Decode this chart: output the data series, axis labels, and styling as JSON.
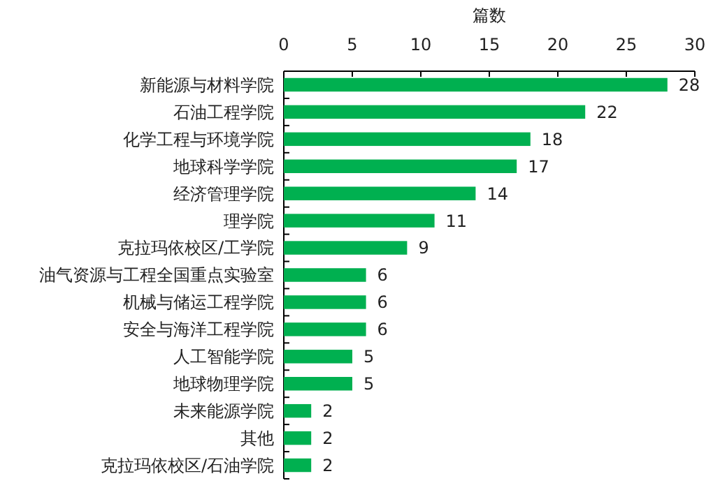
{
  "chart_data": {
    "type": "bar",
    "orientation": "horizontal",
    "xlabel": "篇数",
    "categories": [
      "新能源与材料学院",
      "石油工程学院",
      "化学工程与环境学院",
      "地球科学学院",
      "经济管理学院",
      "理学院",
      "克拉玛依校区/工学院",
      "油气资源与工程全国重点实验室",
      "机械与储运工程学院",
      "安全与海洋工程学院",
      "人工智能学院",
      "地球物理学院",
      "未来能源学院",
      "其他",
      "克拉玛依校区/石油学院"
    ],
    "values": [
      28,
      22,
      18,
      17,
      14,
      11,
      9,
      6,
      6,
      6,
      5,
      5,
      2,
      2,
      2
    ],
    "color": "#00b050",
    "xlim": [
      0,
      30
    ],
    "xticks": [
      0,
      5,
      10,
      15,
      20,
      25,
      30
    ],
    "data_labels": true
  }
}
